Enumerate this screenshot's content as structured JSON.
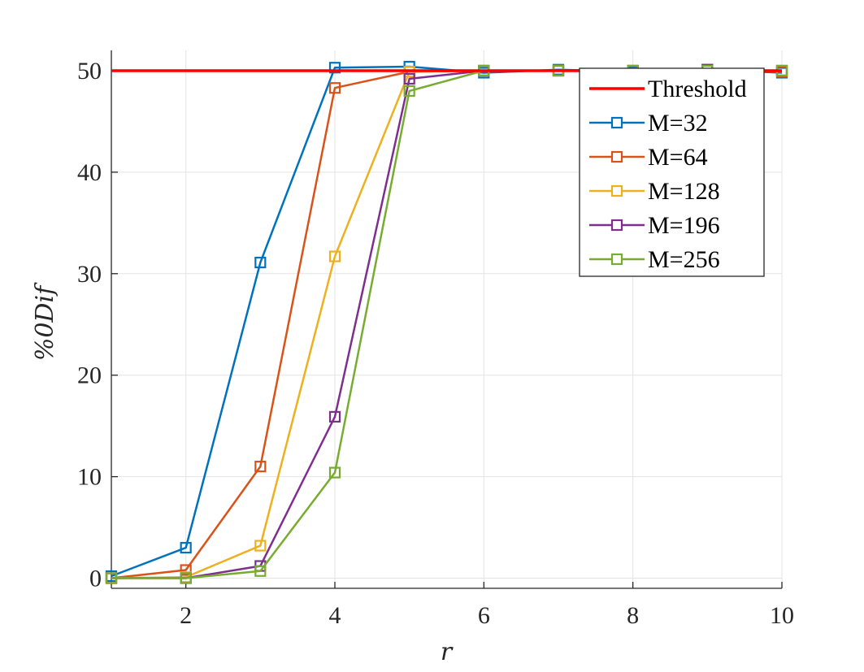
{
  "chart_data": {
    "type": "line",
    "xlabel": "r",
    "ylabel": "%0Dif",
    "xlim": [
      1,
      10
    ],
    "ylim": [
      -1,
      52
    ],
    "xticks": [
      2,
      4,
      6,
      8,
      10
    ],
    "yticks": [
      0,
      10,
      20,
      30,
      40,
      50
    ],
    "grid": true,
    "legend_position": "top-right",
    "x": [
      1,
      2,
      3,
      4,
      5,
      6,
      7,
      8,
      9,
      10
    ],
    "threshold": {
      "name": "Threshold",
      "value": 50,
      "color": "#ff0000"
    },
    "series": [
      {
        "name": "M=32",
        "color": "#0072bd",
        "values": [
          0.2,
          3.0,
          31.1,
          50.3,
          50.4,
          49.8,
          50.1,
          49.9,
          50.1,
          49.8
        ]
      },
      {
        "name": "M=64",
        "color": "#d95319",
        "values": [
          0.0,
          0.8,
          11.0,
          48.3,
          49.9,
          50.0,
          50.0,
          50.0,
          50.1,
          49.9
        ]
      },
      {
        "name": "M=128",
        "color": "#edb120",
        "values": [
          0.0,
          0.1,
          3.2,
          31.7,
          49.9,
          50.0,
          50.0,
          50.0,
          50.0,
          50.0
        ]
      },
      {
        "name": "M=196",
        "color": "#7e2f8e",
        "values": [
          0.0,
          0.0,
          1.2,
          15.9,
          49.2,
          50.0,
          50.0,
          50.0,
          50.1,
          50.0
        ]
      },
      {
        "name": "M=256",
        "color": "#77ac30",
        "values": [
          0.0,
          0.0,
          0.7,
          10.4,
          48.0,
          50.0,
          50.0,
          50.0,
          50.0,
          50.0
        ]
      }
    ]
  }
}
